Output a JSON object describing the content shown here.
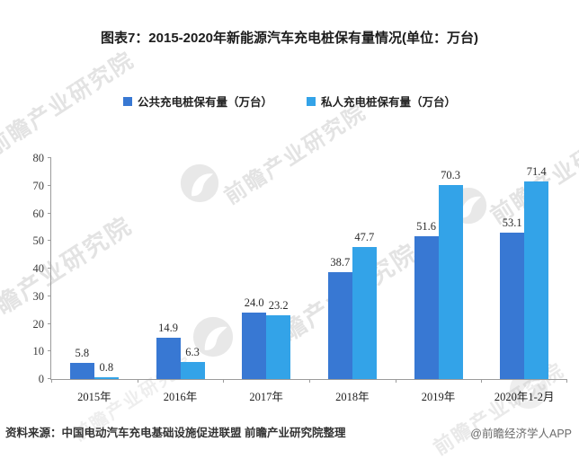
{
  "title": "图表7：2015-2020年新能源汽车充电桩保有量情况(单位：万台)",
  "chart_data": {
    "type": "bar",
    "categories": [
      "2015年",
      "2016年",
      "2017年",
      "2018年",
      "2019年",
      "2020年1-2月"
    ],
    "series": [
      {
        "key": "public",
        "name": "公共充电桩保有量（万台）",
        "color": "#3878d3",
        "values": [
          5.8,
          14.9,
          24.0,
          38.7,
          51.6,
          53.1
        ],
        "labels": [
          "5.8",
          "14.9",
          "24.0",
          "38.7",
          "51.6",
          "53.1"
        ]
      },
      {
        "key": "private",
        "name": "私人充电桩保有量（万台）",
        "color": "#33a3e8",
        "values": [
          0.8,
          6.3,
          23.2,
          47.7,
          70.3,
          71.4
        ],
        "labels": [
          "0.8",
          "6.3",
          "23.2",
          "47.7",
          "70.3",
          "71.4"
        ]
      }
    ],
    "ylim": [
      0,
      80
    ],
    "ytick_interval": 10,
    "grid": false,
    "legend_position": "top",
    "xlabel": "",
    "ylabel": ""
  },
  "footer": {
    "source": "资料来源：中国电动汽车充电基础设施促进联盟 前瞻产业研究院整理",
    "credit": "@前瞻经济学人APP"
  },
  "watermark": {
    "text": "前瞻产业研究院",
    "color": "#bdbdbd"
  }
}
